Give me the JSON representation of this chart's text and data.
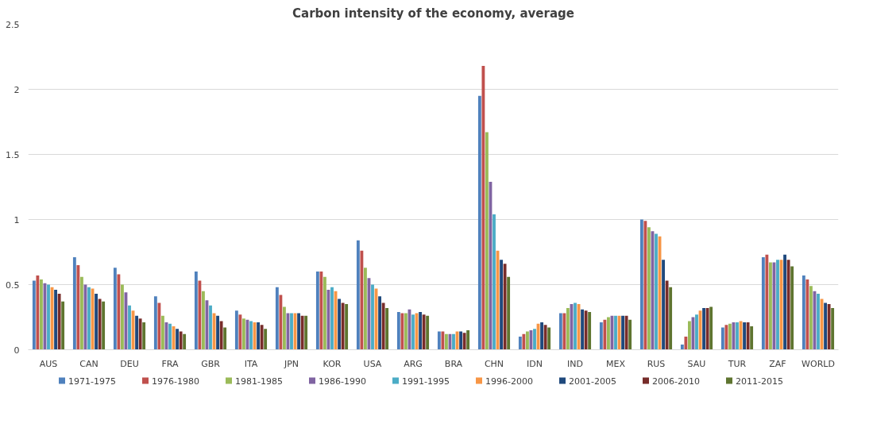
{
  "chart_data": {
    "type": "bar",
    "title": "Carbon intensity of the economy, average",
    "categories": [
      "AUS",
      "CAN",
      "DEU",
      "FRA",
      "GBR",
      "ITA",
      "JPN",
      "KOR",
      "USA",
      "ARG",
      "BRA",
      "CHN",
      "IDN",
      "IND",
      "MEX",
      "RUS",
      "SAU",
      "TUR",
      "ZAF",
      "WORLD"
    ],
    "series": [
      {
        "name": "1971-1975",
        "color": "#4f81bd",
        "values": [
          0.53,
          0.71,
          0.63,
          0.41,
          0.6,
          0.3,
          0.48,
          0.6,
          0.84,
          0.29,
          0.14,
          1.95,
          0.1,
          0.28,
          0.21,
          1.0,
          0.04,
          0.17,
          0.71,
          0.57
        ]
      },
      {
        "name": "1976-1980",
        "color": "#c0504d",
        "values": [
          0.57,
          0.65,
          0.58,
          0.36,
          0.53,
          0.27,
          0.42,
          0.6,
          0.76,
          0.28,
          0.14,
          2.18,
          0.12,
          0.28,
          0.23,
          0.99,
          0.1,
          0.19,
          0.73,
          0.54
        ]
      },
      {
        "name": "1981-1985",
        "color": "#9bbb59",
        "values": [
          0.54,
          0.56,
          0.5,
          0.26,
          0.45,
          0.24,
          0.33,
          0.56,
          0.63,
          0.28,
          0.12,
          1.67,
          0.14,
          0.32,
          0.25,
          0.94,
          0.22,
          0.2,
          0.67,
          0.49
        ]
      },
      {
        "name": "1986-1990",
        "color": "#8064a2",
        "values": [
          0.51,
          0.5,
          0.44,
          0.21,
          0.38,
          0.23,
          0.28,
          0.46,
          0.55,
          0.31,
          0.12,
          1.29,
          0.15,
          0.35,
          0.26,
          0.91,
          0.25,
          0.21,
          0.67,
          0.45
        ]
      },
      {
        "name": "1991-1995",
        "color": "#4bacc6",
        "values": [
          0.5,
          0.48,
          0.34,
          0.2,
          0.34,
          0.22,
          0.28,
          0.48,
          0.5,
          0.27,
          0.12,
          1.04,
          0.16,
          0.36,
          0.26,
          0.89,
          0.27,
          0.21,
          0.69,
          0.43
        ]
      },
      {
        "name": "1996-2000",
        "color": "#f79646",
        "values": [
          0.48,
          0.47,
          0.3,
          0.18,
          0.28,
          0.21,
          0.28,
          0.45,
          0.47,
          0.28,
          0.14,
          0.76,
          0.2,
          0.35,
          0.26,
          0.87,
          0.3,
          0.22,
          0.69,
          0.39
        ]
      },
      {
        "name": "2001-2005",
        "color": "#1f497d",
        "values": [
          0.46,
          0.43,
          0.26,
          0.16,
          0.26,
          0.21,
          0.28,
          0.39,
          0.41,
          0.29,
          0.14,
          0.69,
          0.21,
          0.31,
          0.26,
          0.69,
          0.32,
          0.21,
          0.73,
          0.36
        ]
      },
      {
        "name": "2006-2010",
        "color": "#772c2a",
        "values": [
          0.43,
          0.39,
          0.24,
          0.14,
          0.22,
          0.19,
          0.26,
          0.36,
          0.36,
          0.27,
          0.13,
          0.66,
          0.19,
          0.3,
          0.26,
          0.53,
          0.32,
          0.21,
          0.69,
          0.35
        ]
      },
      {
        "name": "2011-2015",
        "color": "#5f7530",
        "values": [
          0.37,
          0.37,
          0.21,
          0.12,
          0.17,
          0.16,
          0.26,
          0.35,
          0.32,
          0.26,
          0.15,
          0.56,
          0.17,
          0.29,
          0.23,
          0.48,
          0.33,
          0.18,
          0.64,
          0.32
        ]
      }
    ],
    "ylim": [
      0,
      2.5
    ],
    "yticks": [
      0,
      0.5,
      1,
      1.5,
      2,
      2.5
    ],
    "grid": "y",
    "legend": "bottom"
  }
}
